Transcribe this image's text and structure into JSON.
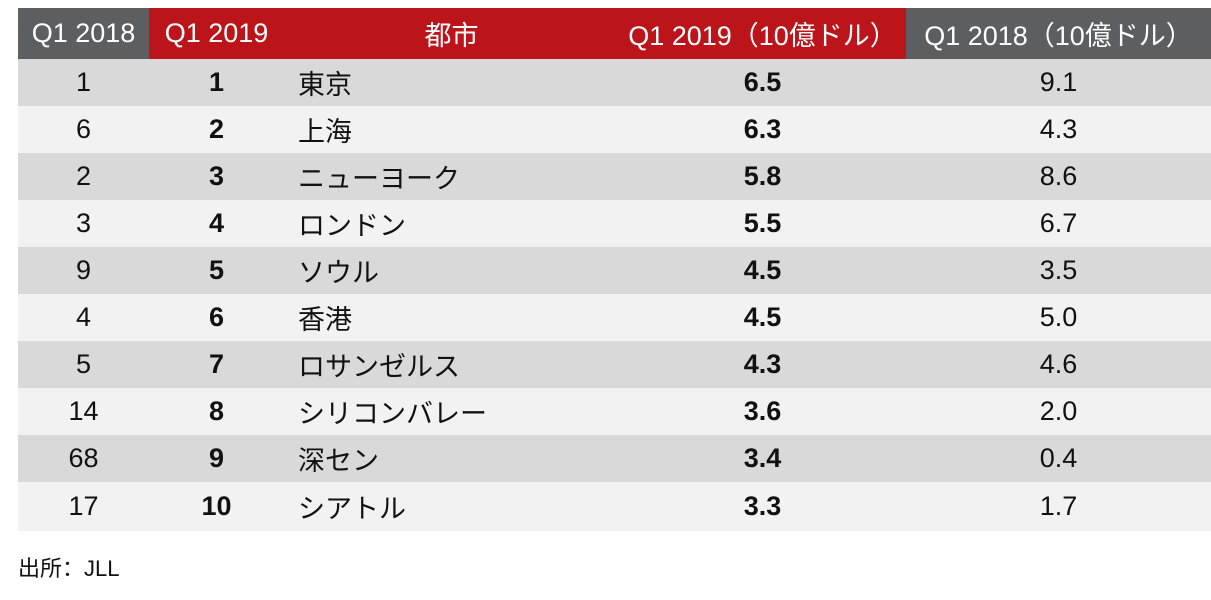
{
  "header": {
    "col_q1_2018": "Q1 2018",
    "col_q1_2019": "Q1 2019",
    "col_city": "都市",
    "col_value_2019": "Q1 2019（10億ドル）",
    "col_value_2018": "Q1 2018（10億ドル）"
  },
  "rows": [
    {
      "rank2018": "1",
      "rank2019": "1",
      "city": "東京",
      "v2019": "6.5",
      "v2018": "9.1"
    },
    {
      "rank2018": "6",
      "rank2019": "2",
      "city": "上海",
      "v2019": "6.3",
      "v2018": "4.3"
    },
    {
      "rank2018": "2",
      "rank2019": "3",
      "city": "ニューヨーク",
      "v2019": "5.8",
      "v2018": "8.6"
    },
    {
      "rank2018": "3",
      "rank2019": "4",
      "city": "ロンドン",
      "v2019": "5.5",
      "v2018": "6.7"
    },
    {
      "rank2018": "9",
      "rank2019": "5",
      "city": "ソウル",
      "v2019": "4.5",
      "v2018": "3.5"
    },
    {
      "rank2018": "4",
      "rank2019": "6",
      "city": "香港",
      "v2019": "4.5",
      "v2018": "5.0"
    },
    {
      "rank2018": "5",
      "rank2019": "7",
      "city": "ロサンゼルス",
      "v2019": "4.3",
      "v2018": "4.6"
    },
    {
      "rank2018": "14",
      "rank2019": "8",
      "city": "シリコンバレー",
      "v2019": "3.6",
      "v2018": "2.0"
    },
    {
      "rank2018": "68",
      "rank2019": "9",
      "city": "深セン",
      "v2019": "3.4",
      "v2018": "0.4"
    },
    {
      "rank2018": "17",
      "rank2019": "10",
      "city": "シアトル",
      "v2019": "3.3",
      "v2018": "1.7"
    }
  ],
  "source": "出所：JLL",
  "colors": {
    "header_grey": "#5b5f62",
    "header_red": "#bb141a",
    "row_dark": "#d9d9d9",
    "row_light": "#f2f2f2"
  }
}
